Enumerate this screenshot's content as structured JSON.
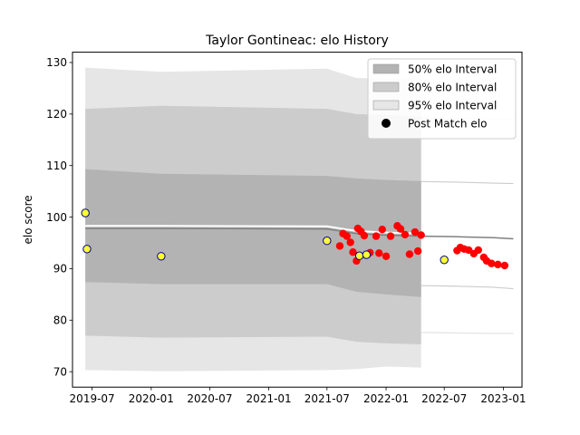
{
  "chart_data": {
    "type": "line",
    "title": "Taylor Gontineac: elo History",
    "xlabel": "",
    "ylabel": "elo score",
    "xlim": [
      "2019-05-01",
      "2023-02-28"
    ],
    "ylim": [
      67,
      132
    ],
    "x_ticks": [
      "2019-07",
      "2020-01",
      "2020-07",
      "2021-01",
      "2021-07",
      "2022-01",
      "2022-07",
      "2023-01"
    ],
    "y_ticks": [
      70,
      80,
      90,
      100,
      110,
      120,
      130
    ],
    "legend_position": "top-right",
    "legend": [
      {
        "label": "50% elo Interval",
        "color": "#b3b3b3"
      },
      {
        "label": "80% elo Interval",
        "color": "#cccccc"
      },
      {
        "label": "95% elo Interval",
        "color": "#e6e6e6"
      },
      {
        "label": "Post Match elo",
        "color": "#000000"
      }
    ],
    "colors": {
      "band_95": "#e6e6e6",
      "band_80": "#cccccc",
      "band_50": "#b3b3b3",
      "mean_line": "#808080",
      "match_points": "#ff0000",
      "highlight_fill": "#ffff33",
      "highlight_edge": "#00008b"
    },
    "bands_main": {
      "x": [
        "2019-06-10",
        "2020-02-01",
        "2021-07-01",
        "2021-10-01",
        "2022-01-01",
        "2022-04-20"
      ],
      "mean": [
        97.8,
        97.8,
        97.7,
        96.8,
        96.5,
        96.3
      ],
      "p50_low": [
        87.4,
        87.0,
        87.0,
        85.5,
        85.0,
        84.5
      ],
      "p50_high": [
        109.3,
        108.4,
        108.0,
        107.5,
        107.2,
        107.0
      ],
      "p80_low": [
        77.0,
        76.6,
        76.8,
        75.8,
        75.5,
        75.3
      ],
      "p80_high": [
        121.0,
        121.6,
        121.0,
        120.0,
        119.8,
        119.5
      ],
      "p95_low": [
        70.3,
        70.1,
        70.3,
        70.5,
        71.0,
        70.8
      ],
      "p95_high": [
        129.0,
        128.2,
        128.8,
        127.0,
        126.8,
        127.0
      ]
    },
    "bands_future": {
      "x": [
        "2022-04-20",
        "2022-08-01",
        "2022-12-01",
        "2023-02-01"
      ],
      "mean": [
        96.3,
        96.2,
        96.0,
        95.8
      ],
      "p50_low": [
        86.6,
        86.5,
        86.3,
        86.0
      ],
      "p50_high": [
        107.0,
        106.9,
        106.7,
        106.6
      ],
      "p95_low": [
        77.5,
        77.4,
        77.3,
        77.3
      ],
      "p95_high": [
        119.4,
        119.3,
        119.2,
        119.1
      ]
    },
    "match_points": [
      {
        "x": "2021-08-10",
        "y": 94.4
      },
      {
        "x": "2021-08-20",
        "y": 96.8
      },
      {
        "x": "2021-09-01",
        "y": 96.3
      },
      {
        "x": "2021-09-12",
        "y": 95.1
      },
      {
        "x": "2021-09-20",
        "y": 93.2
      },
      {
        "x": "2021-10-01",
        "y": 91.5
      },
      {
        "x": "2021-10-05",
        "y": 97.8
      },
      {
        "x": "2021-10-15",
        "y": 97.2
      },
      {
        "x": "2021-10-25",
        "y": 96.4
      },
      {
        "x": "2021-11-05",
        "y": 92.8
      },
      {
        "x": "2021-11-12",
        "y": 93.1
      },
      {
        "x": "2021-12-01",
        "y": 96.3
      },
      {
        "x": "2021-12-10",
        "y": 93.0
      },
      {
        "x": "2021-12-20",
        "y": 97.6
      },
      {
        "x": "2022-01-01",
        "y": 92.4
      },
      {
        "x": "2022-01-15",
        "y": 96.3
      },
      {
        "x": "2022-02-05",
        "y": 98.3
      },
      {
        "x": "2022-02-15",
        "y": 97.7
      },
      {
        "x": "2022-03-01",
        "y": 96.6
      },
      {
        "x": "2022-03-15",
        "y": 92.8
      },
      {
        "x": "2022-04-01",
        "y": 97.1
      },
      {
        "x": "2022-04-10",
        "y": 93.4
      },
      {
        "x": "2022-04-20",
        "y": 96.5
      },
      {
        "x": "2022-08-10",
        "y": 93.5
      },
      {
        "x": "2022-08-20",
        "y": 94.1
      },
      {
        "x": "2022-09-01",
        "y": 93.8
      },
      {
        "x": "2022-09-15",
        "y": 93.6
      },
      {
        "x": "2022-10-01",
        "y": 92.9
      },
      {
        "x": "2022-10-15",
        "y": 93.6
      },
      {
        "x": "2022-11-01",
        "y": 92.2
      },
      {
        "x": "2022-11-10",
        "y": 91.5
      },
      {
        "x": "2022-11-25",
        "y": 91.0
      },
      {
        "x": "2022-12-15",
        "y": 90.8
      },
      {
        "x": "2023-01-05",
        "y": 90.6
      }
    ],
    "highlight_points": [
      {
        "x": "2019-06-10",
        "y": 100.8
      },
      {
        "x": "2019-06-15",
        "y": 93.8
      },
      {
        "x": "2020-02-01",
        "y": 92.4
      },
      {
        "x": "2021-07-01",
        "y": 95.4
      },
      {
        "x": "2021-10-10",
        "y": 92.5
      },
      {
        "x": "2021-11-01",
        "y": 92.7
      },
      {
        "x": "2022-07-01",
        "y": 91.7
      }
    ]
  }
}
